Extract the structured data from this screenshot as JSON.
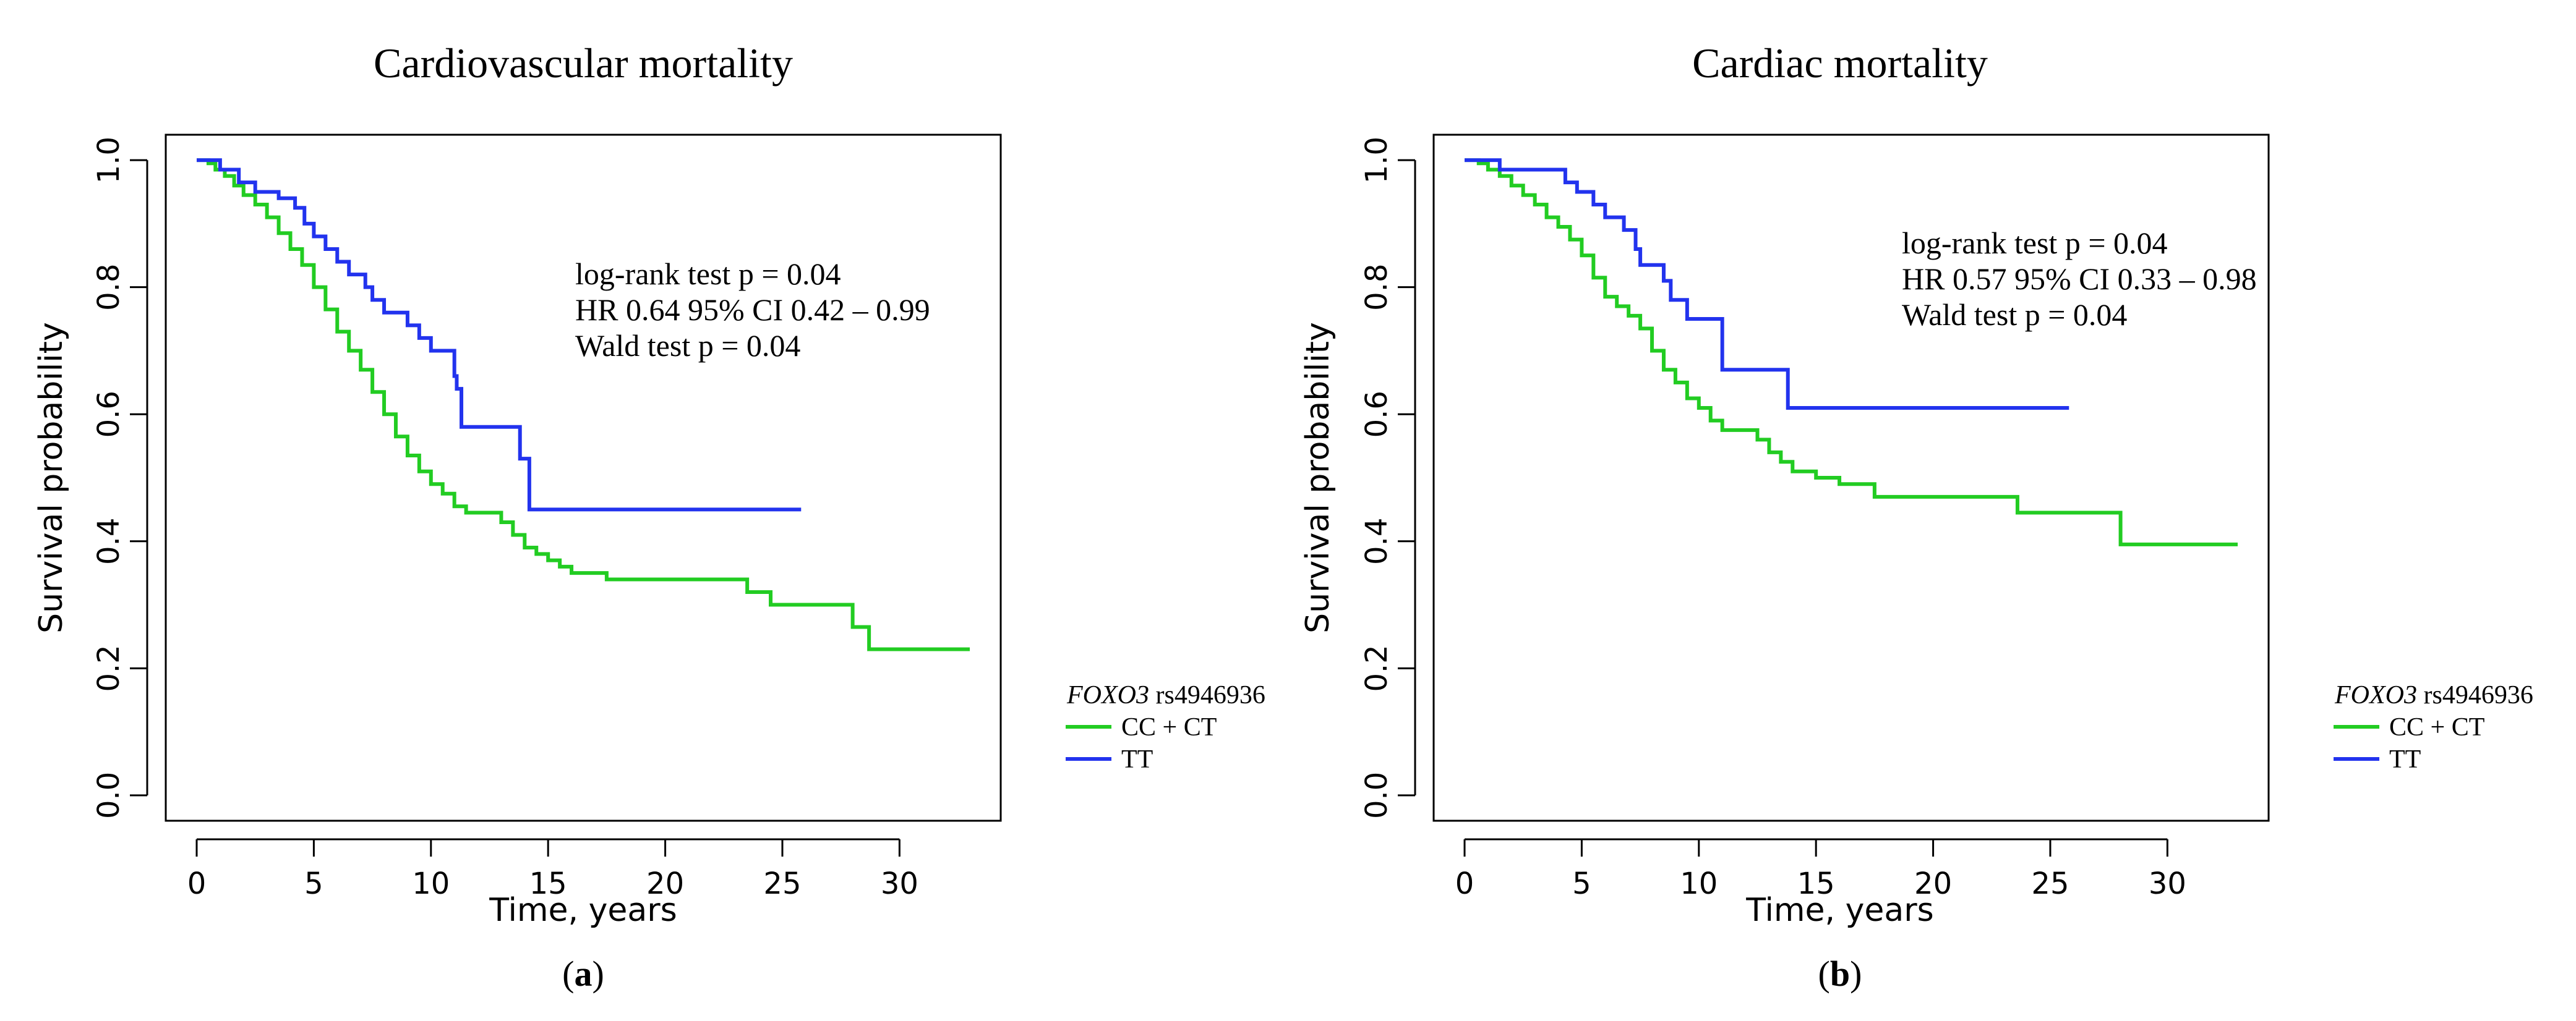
{
  "figure": {
    "panels": [
      {
        "id": "a",
        "caption": "(a)",
        "annotations": [
          "log-rank test p = 0.04",
          "HR 0.64 95% CI 0.42 – 0.99",
          "Wald test p = 0.04"
        ],
        "legend_title_italic": "FOXO3",
        "legend_title_rest": " rs4946936"
      },
      {
        "id": "b",
        "caption": "(b)",
        "annotations": [
          "log-rank test p = 0.04",
          "HR 0.57 95% CI 0.33 – 0.98",
          "Wald test p = 0.04"
        ],
        "legend_title_italic": "FOXO3",
        "legend_title_rest": " rs4946936"
      }
    ]
  },
  "chart_data": [
    {
      "type": "line",
      "title": "Cardiovascular mortality",
      "xlabel": "Time, years",
      "ylabel": "Survival probability",
      "xlim": [
        0,
        33
      ],
      "ylim": [
        0,
        1
      ],
      "xticks": [
        0,
        5,
        10,
        15,
        20,
        25,
        30
      ],
      "yticks": [
        0.0,
        0.2,
        0.4,
        0.6,
        0.8,
        1.0
      ],
      "ytick_labels": [
        "0.0",
        "0.2",
        "0.4",
        "0.6",
        "0.8",
        "1.0"
      ],
      "legend_position": "right, outside plot, bottom",
      "series": [
        {
          "name": "CC + CT",
          "color": "#22cc22",
          "step": true,
          "points": [
            [
              0,
              1.0
            ],
            [
              0.5,
              0.995
            ],
            [
              0.8,
              0.985
            ],
            [
              1.2,
              0.975
            ],
            [
              1.6,
              0.96
            ],
            [
              2.0,
              0.945
            ],
            [
              2.5,
              0.93
            ],
            [
              3.0,
              0.91
            ],
            [
              3.5,
              0.885
            ],
            [
              4.0,
              0.86
            ],
            [
              4.5,
              0.835
            ],
            [
              5.0,
              0.8
            ],
            [
              5.5,
              0.765
            ],
            [
              6.0,
              0.73
            ],
            [
              6.5,
              0.7
            ],
            [
              7.0,
              0.67
            ],
            [
              7.5,
              0.635
            ],
            [
              8.0,
              0.6
            ],
            [
              8.5,
              0.565
            ],
            [
              9.0,
              0.535
            ],
            [
              9.5,
              0.51
            ],
            [
              10.0,
              0.49
            ],
            [
              10.5,
              0.475
            ],
            [
              11.0,
              0.455
            ],
            [
              11.5,
              0.445
            ],
            [
              12.5,
              0.445
            ],
            [
              13.0,
              0.43
            ],
            [
              13.5,
              0.41
            ],
            [
              14.0,
              0.39
            ],
            [
              14.5,
              0.38
            ],
            [
              15.0,
              0.37
            ],
            [
              15.5,
              0.36
            ],
            [
              16.0,
              0.35
            ],
            [
              17.5,
              0.34
            ],
            [
              23.5,
              0.32
            ],
            [
              24.5,
              0.3
            ],
            [
              28.0,
              0.265
            ],
            [
              28.7,
              0.23
            ],
            [
              33.0,
              0.23
            ]
          ]
        },
        {
          "name": "TT",
          "color": "#2233ee",
          "step": true,
          "points": [
            [
              0,
              1.0
            ],
            [
              1.0,
              0.985
            ],
            [
              1.8,
              0.965
            ],
            [
              2.5,
              0.95
            ],
            [
              3.5,
              0.94
            ],
            [
              4.2,
              0.925
            ],
            [
              4.6,
              0.9
            ],
            [
              5.0,
              0.88
            ],
            [
              5.5,
              0.86
            ],
            [
              6.0,
              0.84
            ],
            [
              6.5,
              0.82
            ],
            [
              7.2,
              0.8
            ],
            [
              7.5,
              0.78
            ],
            [
              8.0,
              0.76
            ],
            [
              9.0,
              0.74
            ],
            [
              9.5,
              0.72
            ],
            [
              10.0,
              0.7
            ],
            [
              11.0,
              0.66
            ],
            [
              11.1,
              0.64
            ],
            [
              11.3,
              0.58
            ],
            [
              13.8,
              0.53
            ],
            [
              14.2,
              0.45
            ],
            [
              25.8,
              0.45
            ]
          ]
        }
      ]
    },
    {
      "type": "line",
      "title": "Cardiac mortality",
      "xlabel": "Time, years",
      "ylabel": "Survival probability",
      "xlim": [
        0,
        33
      ],
      "ylim": [
        0,
        1
      ],
      "xticks": [
        0,
        5,
        10,
        15,
        20,
        25,
        30
      ],
      "yticks": [
        0.0,
        0.2,
        0.4,
        0.6,
        0.8,
        1.0
      ],
      "ytick_labels": [
        "0.0",
        "0.2",
        "0.4",
        "0.6",
        "0.8",
        "1.0"
      ],
      "legend_position": "right, outside plot, bottom",
      "series": [
        {
          "name": "CC + CT",
          "color": "#22cc22",
          "step": true,
          "points": [
            [
              0,
              1.0
            ],
            [
              0.6,
              0.995
            ],
            [
              1.0,
              0.985
            ],
            [
              1.5,
              0.975
            ],
            [
              2.0,
              0.96
            ],
            [
              2.5,
              0.945
            ],
            [
              3.0,
              0.93
            ],
            [
              3.5,
              0.91
            ],
            [
              4.0,
              0.895
            ],
            [
              4.5,
              0.875
            ],
            [
              5.0,
              0.85
            ],
            [
              5.5,
              0.815
            ],
            [
              6.0,
              0.785
            ],
            [
              6.5,
              0.77
            ],
            [
              7.0,
              0.755
            ],
            [
              7.5,
              0.735
            ],
            [
              8.0,
              0.7
            ],
            [
              8.5,
              0.67
            ],
            [
              9.0,
              0.65
            ],
            [
              9.5,
              0.625
            ],
            [
              10.0,
              0.61
            ],
            [
              10.5,
              0.59
            ],
            [
              11.0,
              0.575
            ],
            [
              12.5,
              0.56
            ],
            [
              13.0,
              0.54
            ],
            [
              13.5,
              0.525
            ],
            [
              14.0,
              0.51
            ],
            [
              15.0,
              0.5
            ],
            [
              16.0,
              0.49
            ],
            [
              17.5,
              0.47
            ],
            [
              23.6,
              0.445
            ],
            [
              28.0,
              0.395
            ],
            [
              33.0,
              0.395
            ]
          ]
        },
        {
          "name": "TT",
          "color": "#2233ee",
          "step": true,
          "points": [
            [
              0,
              1.0
            ],
            [
              1.5,
              0.985
            ],
            [
              4.3,
              0.965
            ],
            [
              4.8,
              0.95
            ],
            [
              5.5,
              0.93
            ],
            [
              6.0,
              0.91
            ],
            [
              6.8,
              0.89
            ],
            [
              7.3,
              0.86
            ],
            [
              7.5,
              0.835
            ],
            [
              8.5,
              0.81
            ],
            [
              8.8,
              0.78
            ],
            [
              9.5,
              0.75
            ],
            [
              11.0,
              0.67
            ],
            [
              13.8,
              0.61
            ],
            [
              25.8,
              0.61
            ]
          ]
        }
      ]
    }
  ]
}
